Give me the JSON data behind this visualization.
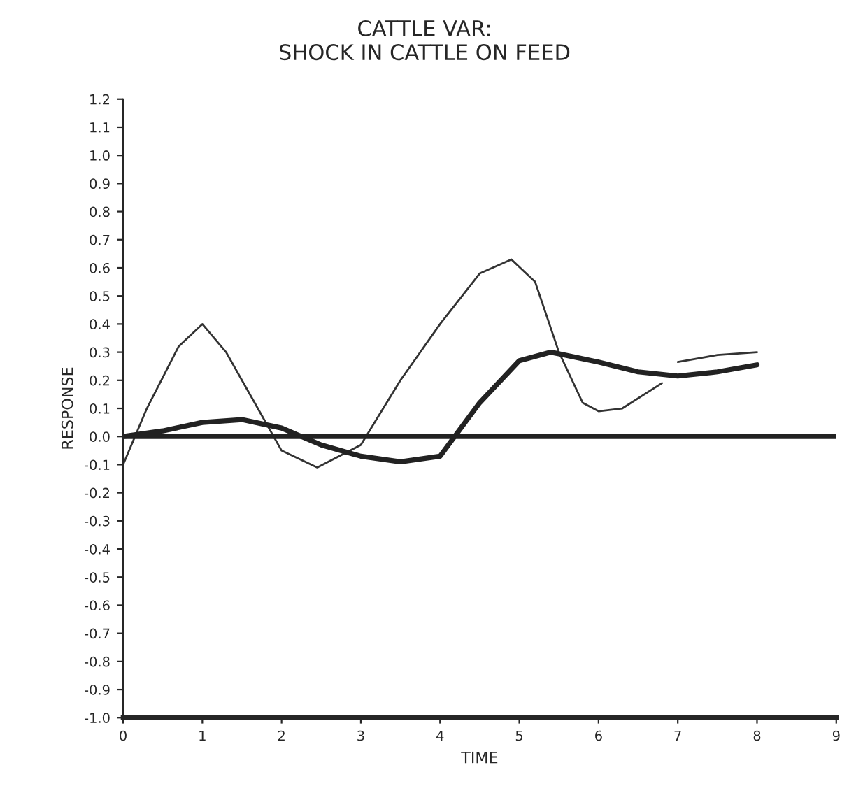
{
  "chart_data": {
    "type": "line",
    "title": "CATTLE VAR:\nSHOCK IN CATTLE ON FEED",
    "xlabel": "TIME",
    "ylabel": "RESPONSE",
    "series": [
      {
        "color": "#333333",
        "x": [
          0,
          0.3,
          0.7,
          1,
          1.3,
          1.7,
          2,
          2.45,
          3,
          3.5,
          4,
          4.5,
          4.9,
          5.2,
          5.5,
          5.8,
          6,
          6.3,
          6.8
        ],
        "values": [
          -0.1,
          0.1,
          0.32,
          0.4,
          0.3,
          0.1,
          -0.05,
          -0.11,
          -0.03,
          0.2,
          0.4,
          0.58,
          0.63,
          0.55,
          0.3,
          0.12,
          0.09,
          0.1,
          0.19
        ]
      },
      {
        "color": "#222222",
        "x": [
          0,
          0.5,
          1,
          1.5,
          2,
          2.5,
          3,
          3.5,
          4,
          4.5,
          5,
          5.4,
          6,
          6.5,
          7,
          7.5,
          8
        ],
        "values": [
          0,
          0.02,
          0.05,
          0.06,
          0.03,
          -0.03,
          -0.07,
          -0.09,
          -0.07,
          0.12,
          0.27,
          0.3,
          0.265,
          0.23,
          0.215,
          0.23,
          0.255
        ]
      },
      {
        "color": "#333333",
        "x": [
          7,
          7.5,
          8
        ],
        "values": [
          0.265,
          0.29,
          0.3
        ]
      }
    ],
    "xlim": [
      0,
      9
    ],
    "xticks": [
      0,
      1,
      2,
      3,
      4,
      5,
      6,
      7,
      8,
      9
    ],
    "ylim": [
      -1.0,
      1.2
    ],
    "yticks": [
      {
        "value": -1.0,
        "label": "-1.0"
      },
      -0.9,
      -0.8,
      -0.7,
      -0.6,
      -0.5,
      -0.4,
      -0.3,
      -0.2,
      -0.1,
      {
        "value": 0.0,
        "label": "0.0"
      },
      0.1,
      0.2,
      0.3,
      0.4,
      0.5,
      0.6,
      0.7,
      0.8,
      0.9,
      {
        "value": 1.0,
        "label": "1.0"
      },
      1.1,
      1.2
    ],
    "ref_lines": [
      {
        "axis": "y",
        "value": 0,
        "color": "#222222"
      }
    ],
    "grid": false,
    "legend": false,
    "marker": "none",
    "line_style": "solid"
  }
}
